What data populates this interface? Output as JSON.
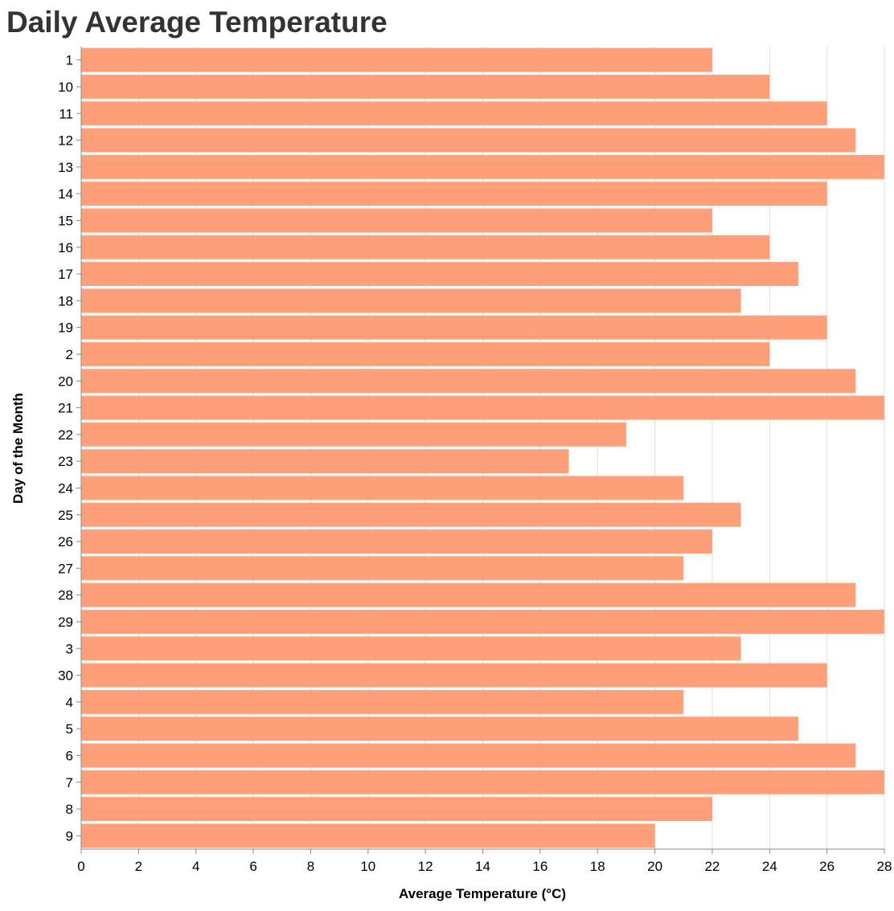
{
  "chart_data": {
    "type": "bar",
    "orientation": "horizontal",
    "title": "Daily Average Temperature",
    "xlabel": "Average Temperature (°C)",
    "ylabel": "Day of the Month",
    "xlim": [
      0,
      28
    ],
    "x_ticks": [
      0,
      2,
      4,
      6,
      8,
      10,
      12,
      14,
      16,
      18,
      20,
      22,
      24,
      26,
      28
    ],
    "grid": true,
    "bar_color": "#FFA07A",
    "categories": [
      "1",
      "10",
      "11",
      "12",
      "13",
      "14",
      "15",
      "16",
      "17",
      "18",
      "19",
      "2",
      "20",
      "21",
      "22",
      "23",
      "24",
      "25",
      "26",
      "27",
      "28",
      "29",
      "3",
      "30",
      "4",
      "5",
      "6",
      "7",
      "8",
      "9"
    ],
    "values": [
      22,
      24,
      26,
      27,
      28,
      26,
      22,
      24,
      25,
      23,
      26,
      24,
      27,
      28,
      19,
      17,
      21,
      23,
      22,
      21,
      27,
      28,
      23,
      26,
      21,
      25,
      27,
      28,
      22,
      20
    ]
  }
}
